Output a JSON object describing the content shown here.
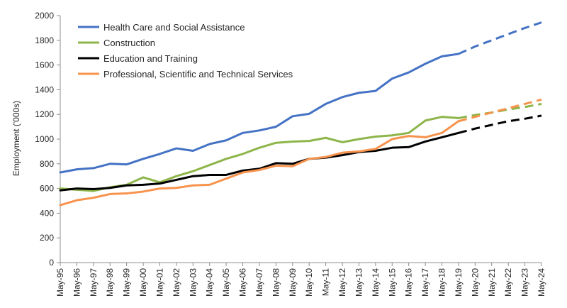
{
  "chart_data": {
    "type": "line",
    "title": "",
    "xlabel": "",
    "ylabel": "Employment ('000s)",
    "ylim": [
      0,
      2000
    ],
    "yticks": [
      0,
      200,
      400,
      600,
      800,
      1000,
      1200,
      1400,
      1600,
      1800,
      2000
    ],
    "grid": false,
    "legend_position": "top-left",
    "categories": [
      "May-95",
      "May-96",
      "May-97",
      "May-98",
      "May-99",
      "May-00",
      "May-01",
      "May-02",
      "May-03",
      "May-04",
      "May-05",
      "May-06",
      "May-07",
      "May-08",
      "May-09",
      "May-10",
      "May-11",
      "May-12",
      "May-13",
      "May-14",
      "May-15",
      "May-16",
      "May-17",
      "May-18",
      "May-19",
      "May-20",
      "May-21",
      "May-22",
      "May-23",
      "May-24"
    ],
    "projection_start": "May-19",
    "series": [
      {
        "name": "Health Care and Social Assistance",
        "color": "#4472C4",
        "values": [
          730,
          755,
          765,
          800,
          795,
          840,
          880,
          925,
          905,
          960,
          990,
          1050,
          1070,
          1100,
          1185,
          1205,
          1285,
          1340,
          1375,
          1390,
          1490,
          1540,
          1610,
          1670,
          1690,
          1750,
          1800,
          1850,
          1900,
          1945
        ]
      },
      {
        "name": "Construction",
        "color": "#8DB54A",
        "values": [
          600,
          590,
          580,
          610,
          630,
          690,
          650,
          700,
          740,
          790,
          840,
          880,
          930,
          970,
          980,
          985,
          1010,
          975,
          1000,
          1020,
          1030,
          1050,
          1150,
          1180,
          1170,
          1195,
          1215,
          1240,
          1260,
          1285
        ]
      },
      {
        "name": "Education and Training",
        "color": "#000000",
        "values": [
          585,
          600,
          595,
          605,
          625,
          630,
          640,
          670,
          700,
          710,
          710,
          745,
          760,
          805,
          800,
          840,
          850,
          870,
          895,
          905,
          930,
          935,
          980,
          1015,
          1050,
          1085,
          1115,
          1145,
          1165,
          1190
        ]
      },
      {
        "name": "Professional, Scientific and Technical Services",
        "color": "#F7934D",
        "values": [
          465,
          505,
          525,
          555,
          560,
          575,
          600,
          605,
          625,
          630,
          680,
          730,
          750,
          785,
          780,
          840,
          855,
          890,
          900,
          920,
          1000,
          1025,
          1015,
          1050,
          1145,
          1180,
          1215,
          1250,
          1285,
          1320
        ]
      }
    ]
  }
}
